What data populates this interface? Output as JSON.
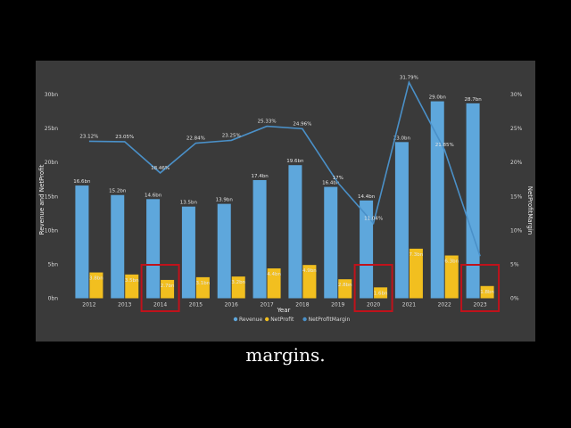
{
  "chart_data": {
    "type": "bar",
    "categories": [
      "2012",
      "2013",
      "2014",
      "2015",
      "2016",
      "2017",
      "2018",
      "2019",
      "2020",
      "2021",
      "2022",
      "2023"
    ],
    "series": [
      {
        "name": "Revenue",
        "values": [
          16.6,
          15.2,
          14.6,
          13.5,
          13.9,
          17.4,
          19.6,
          16.4,
          14.4,
          23.0,
          29.0,
          28.7
        ],
        "labels": [
          "16.6bn",
          "15.2bn",
          "14.6bn",
          "13.5bn",
          "13.9bn",
          "17.4bn",
          "19.6bn",
          "16.4bn",
          "14.4bn",
          "23.0bn",
          "29.0bn",
          "28.7bn"
        ],
        "color": "#5ea7dc"
      },
      {
        "name": "NetProfit",
        "values": [
          3.8,
          3.5,
          2.7,
          3.1,
          3.2,
          4.4,
          4.9,
          2.8,
          1.6,
          7.3,
          6.3,
          1.8
        ],
        "labels": [
          "3.8bn",
          "3.5bn",
          "2.7bn",
          "3.1bn",
          "3.2bn",
          "4.4bn",
          "4.9bn",
          "2.8bn",
          "1.6bn",
          "7.3bn",
          "6.3bn",
          "1.8bn"
        ],
        "color": "#f2bf1f"
      },
      {
        "name": "NetProfitMargin",
        "values": [
          23.12,
          23.05,
          18.46,
          22.84,
          23.25,
          25.33,
          24.96,
          17.0,
          11.04,
          31.79,
          21.85,
          6.2
        ],
        "labels": [
          "23.12%",
          "23.05%",
          "18.46%",
          "22.84%",
          "23.25%",
          "25.33%",
          "24.96%",
          "17%",
          "11.04%",
          "31.79%",
          "21.85%",
          ""
        ],
        "color": "#4a90c8"
      }
    ],
    "xlabel": "Year",
    "ylabel": "Revenue and NetProfit",
    "y2label": "NetProfitMargin",
    "ylim": [
      0,
      30
    ],
    "y2lim": [
      0,
      30
    ],
    "yticks": [
      "0bn",
      "5bn",
      "10bn",
      "15bn",
      "20bn",
      "25bn",
      "30bn"
    ],
    "y2ticks": [
      "0%",
      "5%",
      "10%",
      "15%",
      "20%",
      "25%",
      "30%"
    ],
    "highlighted_categories": [
      "2014",
      "2020",
      "2023"
    ],
    "highlight_color": "#c0121b",
    "legend_position": "bottom-center",
    "grid": false
  },
  "caption": "margins."
}
